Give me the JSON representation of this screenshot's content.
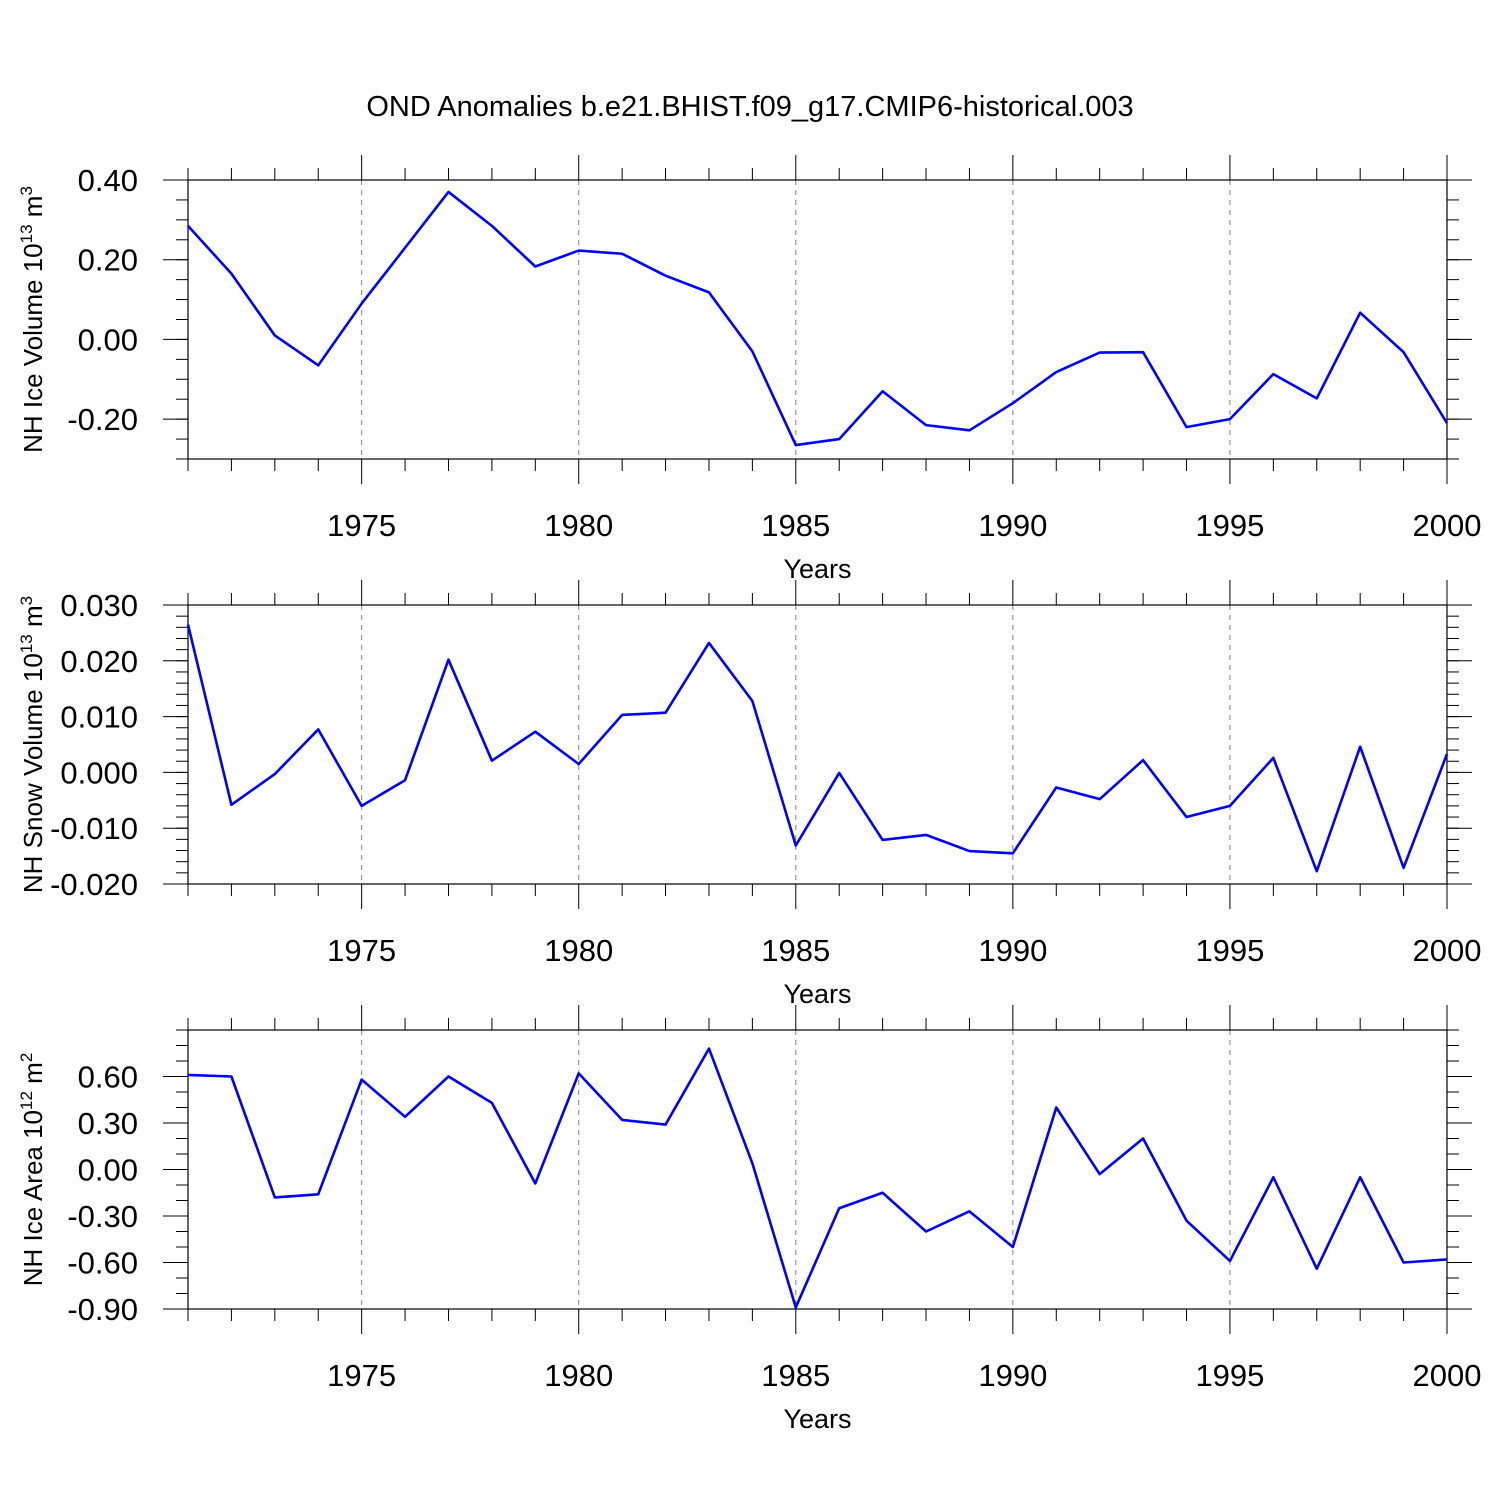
{
  "title": "OND Anomalies b.e21.BHIST.f09_g17.CMIP6-historical.003",
  "colors": {
    "line": "#0000ff",
    "axis": "#000000",
    "grid": "#808080"
  },
  "chart_data": [
    {
      "type": "line",
      "ylabel": {
        "text": "NH Ice Volume 10",
        "sup": "13",
        "tail": " m",
        "sup2": "3"
      },
      "xlabel": "Years",
      "xlim": [
        1971,
        2000
      ],
      "ylim": [
        -0.3,
        0.4
      ],
      "yticks": [
        0.4,
        0.2,
        0.0,
        -0.2
      ],
      "ytick_labels": [
        "0.40",
        "0.20",
        "0.00",
        "-0.20"
      ],
      "yminor_step": 0.05,
      "xticks": [
        1975,
        1980,
        1985,
        1990,
        1995,
        2000
      ],
      "xtick_labels": [
        "1975",
        "1980",
        "1985",
        "1990",
        "1995",
        "2000"
      ],
      "grid": "dashed vertical at major x ticks",
      "x": [
        1971,
        1972,
        1973,
        1974,
        1975,
        1976,
        1977,
        1978,
        1979,
        1980,
        1981,
        1982,
        1983,
        1984,
        1985,
        1986,
        1987,
        1988,
        1989,
        1990,
        1991,
        1992,
        1993,
        1994,
        1995,
        1996,
        1997,
        1998,
        1999,
        2000
      ],
      "values": [
        0.285,
        0.165,
        0.01,
        -0.065,
        0.09,
        0.23,
        0.37,
        0.285,
        0.183,
        0.223,
        0.215,
        0.16,
        0.118,
        -0.03,
        -0.265,
        -0.25,
        -0.13,
        -0.215,
        -0.228,
        -0.16,
        -0.082,
        -0.033,
        -0.032,
        -0.22,
        -0.2,
        -0.087,
        -0.148,
        0.067,
        -0.032,
        -0.21
      ]
    },
    {
      "type": "line",
      "ylabel": {
        "text": "NH Snow Volume 10",
        "sup": "13",
        "tail": " m",
        "sup2": "3"
      },
      "xlabel": "Years",
      "xlim": [
        1971,
        2000
      ],
      "ylim": [
        -0.02,
        0.03
      ],
      "yticks": [
        0.03,
        0.02,
        0.01,
        0.0,
        -0.01,
        -0.02
      ],
      "ytick_labels": [
        "0.030",
        "0.020",
        "0.010",
        "0.000",
        "-0.010",
        "-0.020"
      ],
      "yminor_step": 0.002,
      "xticks": [
        1975,
        1980,
        1985,
        1990,
        1995,
        2000
      ],
      "xtick_labels": [
        "1975",
        "1980",
        "1985",
        "1990",
        "1995",
        "2000"
      ],
      "grid": "dashed vertical at major x ticks",
      "x": [
        1971,
        1972,
        1973,
        1974,
        1975,
        1976,
        1977,
        1978,
        1979,
        1980,
        1981,
        1982,
        1983,
        1984,
        1985,
        1986,
        1987,
        1988,
        1989,
        1990,
        1991,
        1992,
        1993,
        1994,
        1995,
        1996,
        1997,
        1998,
        1999,
        2000
      ],
      "values": [
        0.0265,
        -0.0058,
        -0.0003,
        0.0077,
        -0.006,
        -0.0014,
        0.0202,
        0.0021,
        0.0073,
        0.0015,
        0.0103,
        0.0107,
        0.0232,
        0.0128,
        -0.0131,
        -0.0001,
        -0.0121,
        -0.0112,
        -0.0141,
        -0.0145,
        -0.0027,
        -0.0048,
        0.0022,
        -0.008,
        -0.006,
        0.0026,
        -0.0177,
        0.0046,
        -0.0171,
        0.0033
      ]
    },
    {
      "type": "line",
      "ylabel": {
        "text": "NH Ice Area 10",
        "sup": "12",
        "tail": " m",
        "sup2": "2"
      },
      "xlabel": "Years",
      "xlim": [
        1971,
        2000
      ],
      "ylim": [
        -0.9,
        0.9
      ],
      "yticks": [
        0.6,
        0.3,
        0.0,
        -0.3,
        -0.6,
        -0.9
      ],
      "ytick_labels": [
        "0.60",
        "0.30",
        "0.00",
        "-0.30",
        "-0.60",
        "-0.90"
      ],
      "yminor_step": 0.1,
      "xticks": [
        1975,
        1980,
        1985,
        1990,
        1995,
        2000
      ],
      "xtick_labels": [
        "1975",
        "1980",
        "1985",
        "1990",
        "1995",
        "2000"
      ],
      "grid": "dashed vertical at major x ticks",
      "x": [
        1971,
        1972,
        1973,
        1974,
        1975,
        1976,
        1977,
        1978,
        1979,
        1980,
        1981,
        1982,
        1983,
        1984,
        1985,
        1986,
        1987,
        1988,
        1989,
        1990,
        1991,
        1992,
        1993,
        1994,
        1995,
        1996,
        1997,
        1998,
        1999,
        2000
      ],
      "values": [
        0.61,
        0.6,
        -0.18,
        -0.16,
        0.58,
        0.34,
        0.6,
        0.43,
        -0.09,
        0.62,
        0.32,
        0.29,
        0.78,
        0.04,
        -0.89,
        -0.25,
        -0.15,
        -0.4,
        -0.27,
        -0.5,
        0.4,
        -0.03,
        0.2,
        -0.33,
        -0.59,
        -0.05,
        -0.64,
        -0.05,
        -0.6,
        -0.58
      ]
    }
  ]
}
